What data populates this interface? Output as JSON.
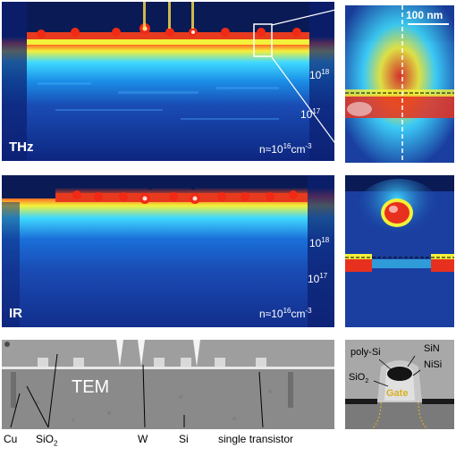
{
  "thz_panel": {
    "label": "THz",
    "level_high": "10",
    "level_high_exp": "18",
    "level_mid": "10",
    "level_mid_exp": "17",
    "level_low_prefix": "n≈10",
    "level_low_exp": "16",
    "level_low_unit": "cm",
    "level_low_unit_exp": "-3"
  },
  "thz_zoom": {
    "scale_label": "100 nm"
  },
  "ir_panel": {
    "label": "IR",
    "level_high": "10",
    "level_high_exp": "18",
    "level_mid": "10",
    "level_mid_exp": "17",
    "level_low_prefix": "n≈10",
    "level_low_exp": "16",
    "level_low_unit": "cm",
    "level_low_unit_exp": "-3"
  },
  "tem_panel": {
    "label": "TEM",
    "callouts": {
      "cu": "Cu",
      "sio2_base": "SiO",
      "sio2_sub": "2",
      "w": "W",
      "si": "Si",
      "transistor": "single transistor"
    }
  },
  "tem_zoom": {
    "labels": {
      "poly_si": "poly-Si",
      "sin": "SiN",
      "nisi": "NiSi",
      "sio2_base": "SiO",
      "sio2_sub": "2",
      "gate": "Gate"
    }
  },
  "colors": {
    "deep_blue": "#0a1e6e",
    "cyan": "#2cc6ff",
    "yellow": "#f3f13a",
    "red": "#e8301e",
    "tem_gray": "#9a9a9a"
  }
}
